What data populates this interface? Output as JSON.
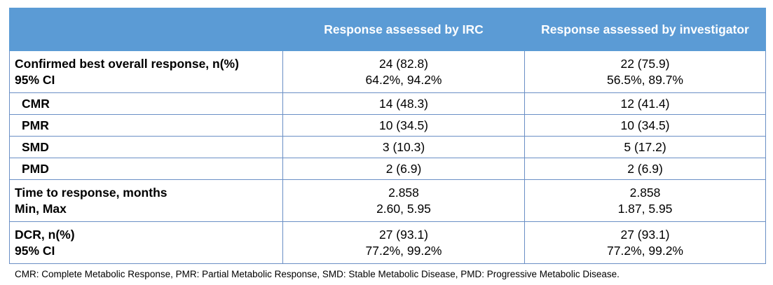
{
  "header": {
    "col1": "",
    "col2": "Response assessed by IRC",
    "col3": "Response assessed by investigator"
  },
  "rows": [
    {
      "label_line1": "Confirmed best overall response, n(%)",
      "label_line2": "95% CI",
      "irc_line1": "24 (82.8)",
      "irc_line2": "64.2%, 94.2%",
      "inv_line1": "22 (75.9)",
      "inv_line2": "56.5%, 89.7%"
    },
    {
      "label": "CMR",
      "irc": "14 (48.3)",
      "inv": "12 (41.4)"
    },
    {
      "label": "PMR",
      "irc": "10 (34.5)",
      "inv": "10 (34.5)"
    },
    {
      "label": "SMD",
      "irc": "3 (10.3)",
      "inv": "5 (17.2)"
    },
    {
      "label": "PMD",
      "irc": "2 (6.9)",
      "inv": "2 (6.9)"
    },
    {
      "label_line1": "Time to response, months",
      "label_line2": "Min, Max",
      "irc_line1": "2.858",
      "irc_line2": "2.60, 5.95",
      "inv_line1": "2.858",
      "inv_line2": "1.87, 5.95"
    },
    {
      "label_line1": "DCR, n(%)",
      "label_line2": "95% CI",
      "irc_line1": "27 (93.1)",
      "irc_line2": "77.2%, 99.2%",
      "inv_line1": "27 (93.1)",
      "inv_line2": "77.2%, 99.2%"
    }
  ],
  "footnote": "CMR: Complete Metabolic Response, PMR: Partial Metabolic Response, SMD: Stable Metabolic Disease, PMD: Progressive Metabolic Disease.",
  "colors": {
    "header_bg": "#5b9bd5",
    "header_text": "#ffffff",
    "border": "#6a8fc5"
  }
}
